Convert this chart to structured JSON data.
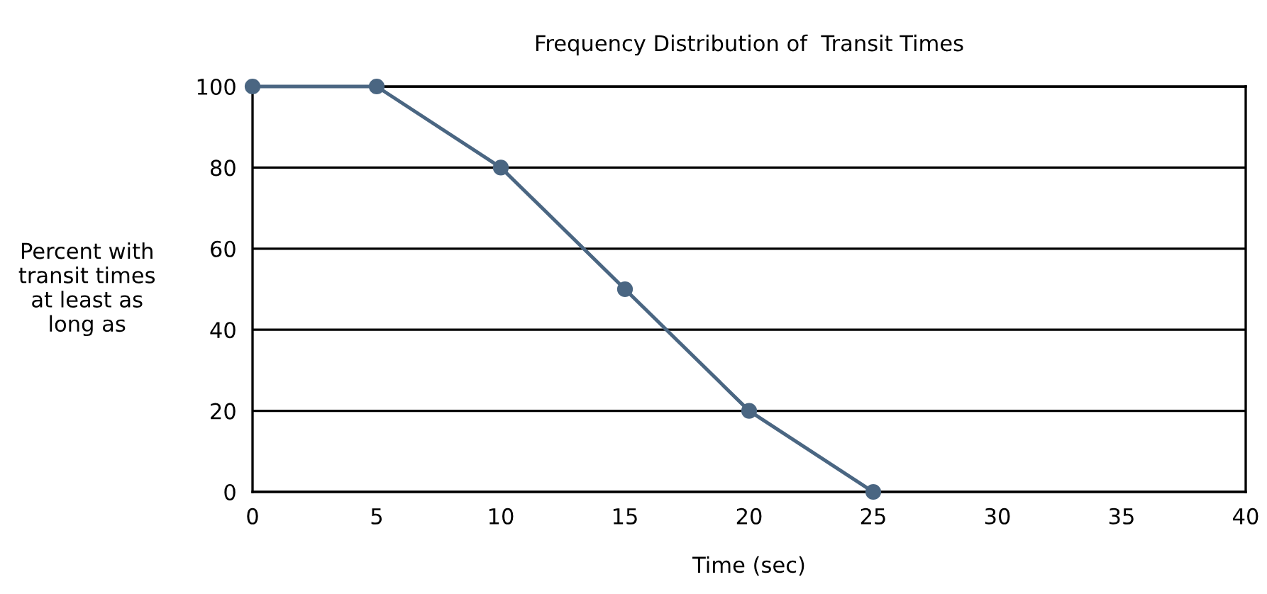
{
  "chart_data": {
    "type": "line",
    "title": "Frequency Distribution of  Transit Times",
    "xlabel": "Time (sec)",
    "ylabel": "Percent with\ntransit times\nat least as\nlong as",
    "x": [
      0,
      5,
      10,
      15,
      20,
      25
    ],
    "series": [
      {
        "color": "#4a6682",
        "values": [
          100,
          100,
          80,
          50,
          20,
          0
        ]
      }
    ],
    "xlim": [
      0,
      40
    ],
    "xticks": [
      0,
      5,
      10,
      15,
      20,
      25,
      30,
      35,
      40
    ],
    "ylim": [
      0,
      100
    ],
    "yticks": [
      0,
      20,
      40,
      60,
      80,
      100
    ],
    "grid": "y",
    "marker": "circle",
    "line_style": "solid"
  }
}
